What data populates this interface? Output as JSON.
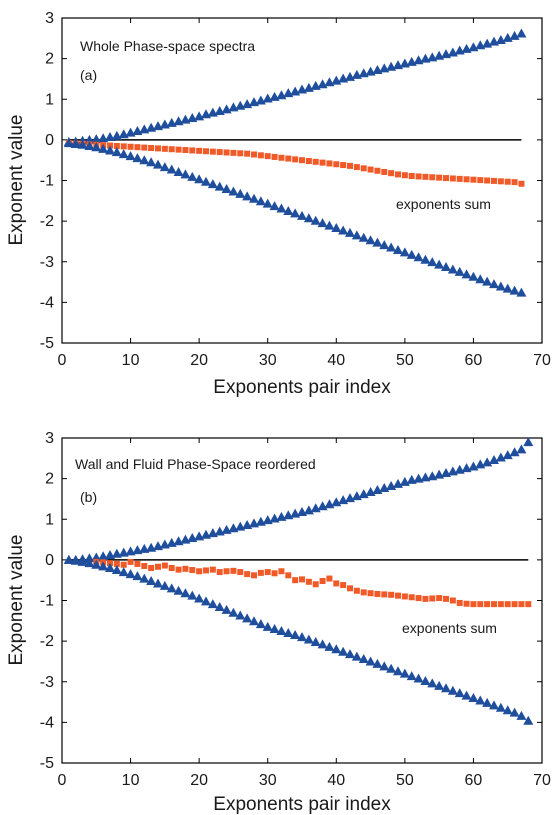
{
  "colors": {
    "triangles": "#1f4e9c",
    "squares": "#f05a28",
    "axis": "#000000",
    "zero_line": "#000000"
  },
  "chart_data": [
    {
      "type": "scatter",
      "panel": "a",
      "title": "Whole Phase-space spectra",
      "panel_label": "(a)",
      "annotation": "exponents sum",
      "xlabel": "Exponents pair index",
      "ylabel": "Exponent value",
      "xlim": [
        0,
        70
      ],
      "ylim": [
        -5,
        3
      ],
      "xticks": [
        "0",
        "10",
        "20",
        "30",
        "40",
        "50",
        "60",
        "70"
      ],
      "yticks": [
        "3",
        "2",
        "1",
        "0",
        "-1",
        "-2",
        "-3",
        "-4",
        "-5"
      ],
      "grid": false,
      "reference_line": {
        "y": 0,
        "x_from": 1,
        "x_to": 67
      },
      "series": [
        {
          "marker": "triangle",
          "x": [
            1,
            2,
            3,
            4,
            5,
            6,
            7,
            8,
            9,
            10,
            11,
            12,
            13,
            14,
            15,
            16,
            17,
            18,
            19,
            20,
            21,
            22,
            23,
            24,
            25,
            26,
            27,
            28,
            29,
            30,
            31,
            32,
            33,
            34,
            35,
            36,
            37,
            38,
            39,
            40,
            41,
            42,
            43,
            44,
            45,
            46,
            47,
            48,
            49,
            50,
            51,
            52,
            53,
            54,
            55,
            56,
            57,
            58,
            59,
            60,
            61,
            62,
            63,
            64,
            65,
            66,
            67
          ],
          "y": [
            -0.05,
            -0.04,
            -0.02,
            0,
            0.02,
            0.04,
            0.07,
            0.1,
            0.14,
            0.18,
            0.22,
            0.26,
            0.3,
            0.34,
            0.38,
            0.42,
            0.46,
            0.5,
            0.54,
            0.58,
            0.63,
            0.67,
            0.71,
            0.75,
            0.8,
            0.84,
            0.88,
            0.93,
            0.97,
            1.02,
            1.06,
            1.1,
            1.15,
            1.19,
            1.24,
            1.28,
            1.33,
            1.37,
            1.42,
            1.46,
            1.51,
            1.55,
            1.6,
            1.64,
            1.68,
            1.72,
            1.76,
            1.8,
            1.84,
            1.88,
            1.92,
            1.96,
            2.0,
            2.03,
            2.07,
            2.11,
            2.15,
            2.2,
            2.24,
            2.28,
            2.33,
            2.37,
            2.42,
            2.46,
            2.51,
            2.56,
            2.62
          ]
        },
        {
          "marker": "square",
          "x": [
            1,
            2,
            3,
            4,
            5,
            6,
            7,
            8,
            9,
            10,
            11,
            12,
            13,
            14,
            15,
            16,
            17,
            18,
            19,
            20,
            21,
            22,
            23,
            24,
            25,
            26,
            27,
            28,
            29,
            30,
            31,
            32,
            33,
            34,
            35,
            36,
            37,
            38,
            39,
            40,
            41,
            42,
            43,
            44,
            45,
            46,
            47,
            48,
            49,
            50,
            51,
            52,
            53,
            54,
            55,
            56,
            57,
            58,
            59,
            60,
            61,
            62,
            63,
            64,
            65,
            66,
            67
          ],
          "y": [
            -0.08,
            -0.09,
            -0.1,
            -0.11,
            -0.12,
            -0.13,
            -0.14,
            -0.15,
            -0.16,
            -0.17,
            -0.18,
            -0.19,
            -0.2,
            -0.21,
            -0.22,
            -0.23,
            -0.24,
            -0.25,
            -0.26,
            -0.27,
            -0.28,
            -0.29,
            -0.3,
            -0.31,
            -0.32,
            -0.33,
            -0.34,
            -0.36,
            -0.38,
            -0.4,
            -0.42,
            -0.44,
            -0.46,
            -0.48,
            -0.5,
            -0.52,
            -0.54,
            -0.56,
            -0.58,
            -0.6,
            -0.62,
            -0.64,
            -0.67,
            -0.7,
            -0.73,
            -0.76,
            -0.79,
            -0.82,
            -0.85,
            -0.87,
            -0.89,
            -0.9,
            -0.91,
            -0.92,
            -0.93,
            -0.94,
            -0.95,
            -0.96,
            -0.97,
            -0.98,
            -0.99,
            -1.0,
            -1.01,
            -1.02,
            -1.03,
            -1.04,
            -1.08
          ]
        },
        {
          "marker": "triangle",
          "x": [
            1,
            2,
            3,
            4,
            5,
            6,
            7,
            8,
            9,
            10,
            11,
            12,
            13,
            14,
            15,
            16,
            17,
            18,
            19,
            20,
            21,
            22,
            23,
            24,
            25,
            26,
            27,
            28,
            29,
            30,
            31,
            32,
            33,
            34,
            35,
            36,
            37,
            38,
            39,
            40,
            41,
            42,
            43,
            44,
            45,
            46,
            47,
            48,
            49,
            50,
            51,
            52,
            53,
            54,
            55,
            56,
            57,
            58,
            59,
            60,
            61,
            62,
            63,
            64,
            65,
            66,
            67
          ],
          "y": [
            -0.08,
            -0.1,
            -0.12,
            -0.15,
            -0.18,
            -0.22,
            -0.26,
            -0.3,
            -0.35,
            -0.4,
            -0.45,
            -0.5,
            -0.55,
            -0.61,
            -0.67,
            -0.73,
            -0.79,
            -0.85,
            -0.91,
            -0.97,
            -1.03,
            -1.09,
            -1.15,
            -1.21,
            -1.27,
            -1.33,
            -1.39,
            -1.45,
            -1.51,
            -1.57,
            -1.63,
            -1.69,
            -1.75,
            -1.81,
            -1.87,
            -1.93,
            -1.99,
            -2.05,
            -2.11,
            -2.17,
            -2.23,
            -2.29,
            -2.35,
            -2.41,
            -2.47,
            -2.53,
            -2.59,
            -2.65,
            -2.71,
            -2.77,
            -2.83,
            -2.89,
            -2.95,
            -3.01,
            -3.07,
            -3.13,
            -3.19,
            -3.25,
            -3.31,
            -3.37,
            -3.43,
            -3.49,
            -3.55,
            -3.61,
            -3.66,
            -3.71,
            -3.76
          ]
        }
      ]
    },
    {
      "type": "scatter",
      "panel": "b",
      "title": "Wall and Fluid Phase-Space reordered",
      "panel_label": "(b)",
      "annotation": "exponents sum",
      "xlabel": "Exponents pair index",
      "ylabel": "Exponent value",
      "xlim": [
        0,
        70
      ],
      "ylim": [
        -5,
        3
      ],
      "xticks": [
        "0",
        "10",
        "20",
        "30",
        "40",
        "50",
        "60",
        "70"
      ],
      "yticks": [
        "3",
        "2",
        "1",
        "0",
        "-1",
        "-2",
        "-3",
        "-4",
        "-5"
      ],
      "grid": false,
      "reference_line": {
        "y": 0,
        "x_from": 1,
        "x_to": 68
      },
      "series": [
        {
          "marker": "triangle",
          "x": [
            1,
            2,
            3,
            4,
            5,
            6,
            7,
            8,
            9,
            10,
            11,
            12,
            13,
            14,
            15,
            16,
            17,
            18,
            19,
            20,
            21,
            22,
            23,
            24,
            25,
            26,
            27,
            28,
            29,
            30,
            31,
            32,
            33,
            34,
            35,
            36,
            37,
            38,
            39,
            40,
            41,
            42,
            43,
            44,
            45,
            46,
            47,
            48,
            49,
            50,
            51,
            52,
            53,
            54,
            55,
            56,
            57,
            58,
            59,
            60,
            61,
            62,
            63,
            64,
            65,
            66,
            67,
            68
          ],
          "y": [
            0,
            0,
            0.02,
            0.04,
            0.06,
            0.09,
            0.12,
            0.15,
            0.18,
            0.21,
            0.24,
            0.27,
            0.3,
            0.34,
            0.38,
            0.42,
            0.46,
            0.5,
            0.54,
            0.58,
            0.62,
            0.66,
            0.7,
            0.74,
            0.78,
            0.82,
            0.86,
            0.9,
            0.94,
            0.98,
            1.02,
            1.06,
            1.1,
            1.14,
            1.18,
            1.22,
            1.27,
            1.32,
            1.37,
            1.42,
            1.47,
            1.52,
            1.57,
            1.62,
            1.67,
            1.72,
            1.77,
            1.82,
            1.87,
            1.92,
            1.97,
            2.0,
            2.03,
            2.06,
            2.1,
            2.14,
            2.18,
            2.22,
            2.26,
            2.3,
            2.35,
            2.4,
            2.46,
            2.52,
            2.58,
            2.65,
            2.72,
            2.9
          ]
        },
        {
          "marker": "square",
          "x": [
            5,
            6,
            7,
            8,
            9,
            10,
            11,
            12,
            13,
            14,
            15,
            16,
            17,
            18,
            19,
            20,
            21,
            22,
            23,
            24,
            25,
            26,
            27,
            28,
            29,
            30,
            31,
            32,
            33,
            34,
            35,
            36,
            37,
            38,
            39,
            40,
            41,
            42,
            43,
            44,
            45,
            46,
            47,
            48,
            49,
            50,
            51,
            52,
            53,
            54,
            55,
            56,
            57,
            58,
            59,
            60,
            61,
            62,
            63,
            64,
            65,
            66,
            67,
            68
          ],
          "y": [
            -0.05,
            -0.06,
            -0.08,
            -0.1,
            -0.12,
            -0.05,
            -0.1,
            -0.15,
            -0.2,
            -0.17,
            -0.14,
            -0.2,
            -0.24,
            -0.22,
            -0.25,
            -0.28,
            -0.26,
            -0.24,
            -0.3,
            -0.28,
            -0.27,
            -0.3,
            -0.35,
            -0.38,
            -0.32,
            -0.3,
            -0.33,
            -0.28,
            -0.38,
            -0.5,
            -0.48,
            -0.54,
            -0.6,
            -0.52,
            -0.46,
            -0.58,
            -0.62,
            -0.7,
            -0.76,
            -0.8,
            -0.82,
            -0.84,
            -0.85,
            -0.86,
            -0.88,
            -0.9,
            -0.92,
            -0.94,
            -0.96,
            -0.95,
            -0.94,
            -0.96,
            -1.0,
            -1.06,
            -1.08,
            -1.09,
            -1.09,
            -1.09,
            -1.09,
            -1.09,
            -1.09,
            -1.09,
            -1.09,
            -1.09
          ]
        },
        {
          "marker": "triangle",
          "x": [
            1,
            2,
            3,
            4,
            5,
            6,
            7,
            8,
            9,
            10,
            11,
            12,
            13,
            14,
            15,
            16,
            17,
            18,
            19,
            20,
            21,
            22,
            23,
            24,
            25,
            26,
            27,
            28,
            29,
            30,
            31,
            32,
            33,
            34,
            35,
            36,
            37,
            38,
            39,
            40,
            41,
            42,
            43,
            44,
            45,
            46,
            47,
            48,
            49,
            50,
            51,
            52,
            53,
            54,
            55,
            56,
            57,
            58,
            59,
            60,
            61,
            62,
            63,
            64,
            65,
            66,
            67,
            68
          ],
          "y": [
            0,
            -0.02,
            -0.05,
            -0.08,
            -0.12,
            -0.16,
            -0.2,
            -0.25,
            -0.3,
            -0.35,
            -0.4,
            -0.46,
            -0.52,
            -0.58,
            -0.64,
            -0.7,
            -0.76,
            -0.82,
            -0.88,
            -0.95,
            -1.02,
            -1.09,
            -1.16,
            -1.23,
            -1.3,
            -1.37,
            -1.44,
            -1.51,
            -1.58,
            -1.65,
            -1.7,
            -1.75,
            -1.8,
            -1.85,
            -1.9,
            -1.96,
            -2.02,
            -2.08,
            -2.14,
            -2.2,
            -2.26,
            -2.32,
            -2.38,
            -2.44,
            -2.5,
            -2.56,
            -2.62,
            -2.68,
            -2.74,
            -2.8,
            -2.86,
            -2.92,
            -2.98,
            -3.04,
            -3.1,
            -3.16,
            -3.22,
            -3.28,
            -3.34,
            -3.4,
            -3.46,
            -3.52,
            -3.58,
            -3.64,
            -3.7,
            -3.76,
            -3.84,
            -3.96
          ]
        }
      ]
    }
  ]
}
